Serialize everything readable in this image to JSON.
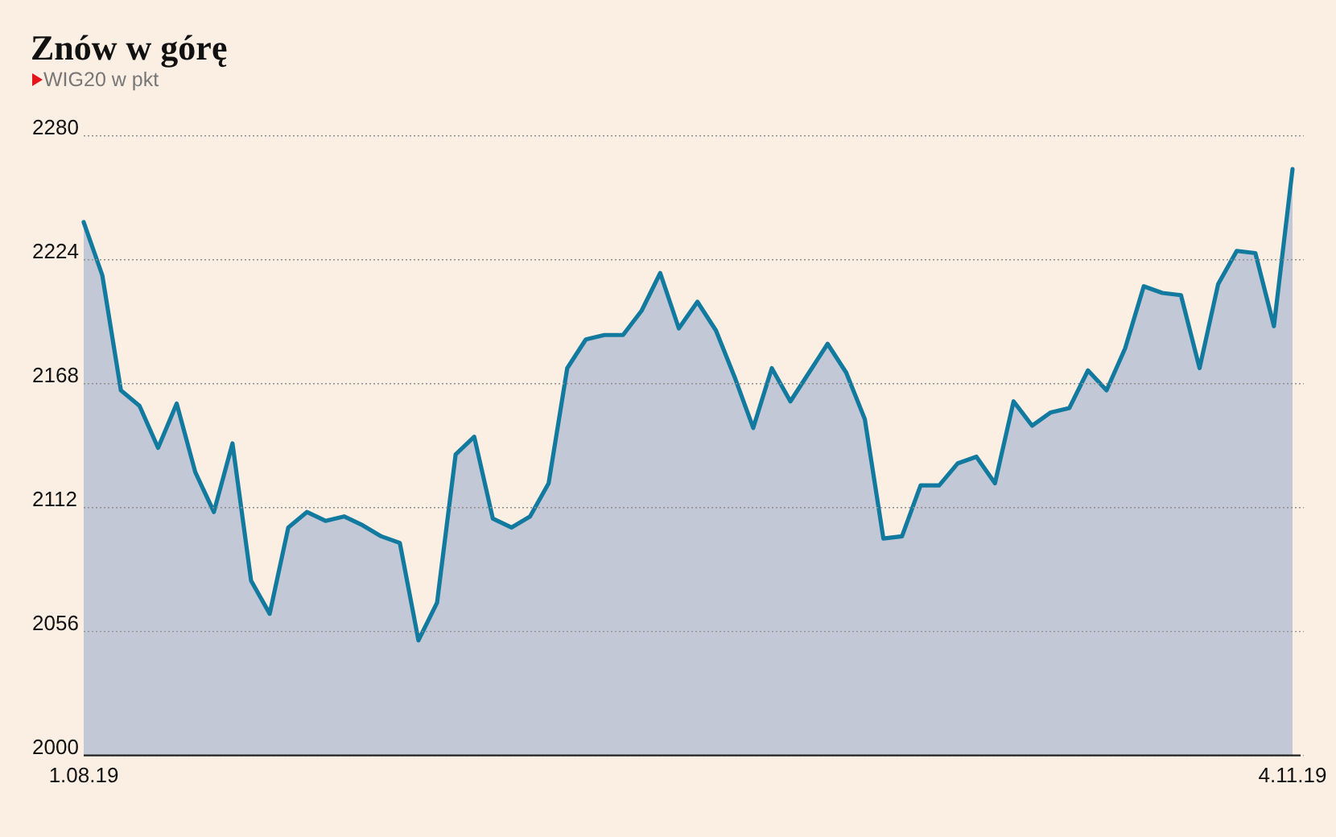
{
  "chart_data": {
    "type": "area",
    "title": "Znów w górę",
    "subtitle": "WIG20 w pkt",
    "categories": [
      "1.08.19",
      null,
      null,
      null,
      null,
      null,
      null,
      null,
      null,
      null,
      null,
      null,
      null,
      null,
      null,
      null,
      null,
      null,
      null,
      null,
      null,
      null,
      null,
      null,
      null,
      null,
      null,
      null,
      null,
      null,
      null,
      null,
      null,
      null,
      null,
      null,
      null,
      null,
      null,
      null,
      null,
      null,
      null,
      null,
      null,
      null,
      null,
      null,
      null,
      null,
      null,
      null,
      null,
      null,
      null,
      null,
      null,
      null,
      null,
      null,
      null,
      null,
      null,
      null,
      null,
      "4.11.19"
    ],
    "series": [
      {
        "color": "#137a9f",
        "values": [
          2241,
          2217,
          2165,
          2158,
          2139,
          2159,
          2128,
          2110,
          2141,
          2079,
          2064,
          2103,
          2110,
          2106,
          2108,
          2104,
          2099,
          2096,
          2052,
          2069,
          2136,
          2144,
          2107,
          2103,
          2108,
          2123,
          2175,
          2188,
          2190,
          2190,
          2201,
          2218,
          2193,
          2205,
          2192,
          2171,
          2148,
          2175,
          2160,
          2173,
          2186,
          2173,
          2152,
          2098,
          2099,
          2122,
          2122,
          2132,
          2135,
          2123,
          2160,
          2149,
          2155,
          2157,
          2174,
          2165,
          2184,
          2212,
          2209,
          2208,
          2175,
          2213,
          2228,
          2227,
          2194,
          2265
        ]
      }
    ],
    "ylim": [
      2000,
      2280
    ],
    "yticks": [
      2000,
      2056,
      2112,
      2168,
      2224,
      2280
    ],
    "grid": "y"
  }
}
